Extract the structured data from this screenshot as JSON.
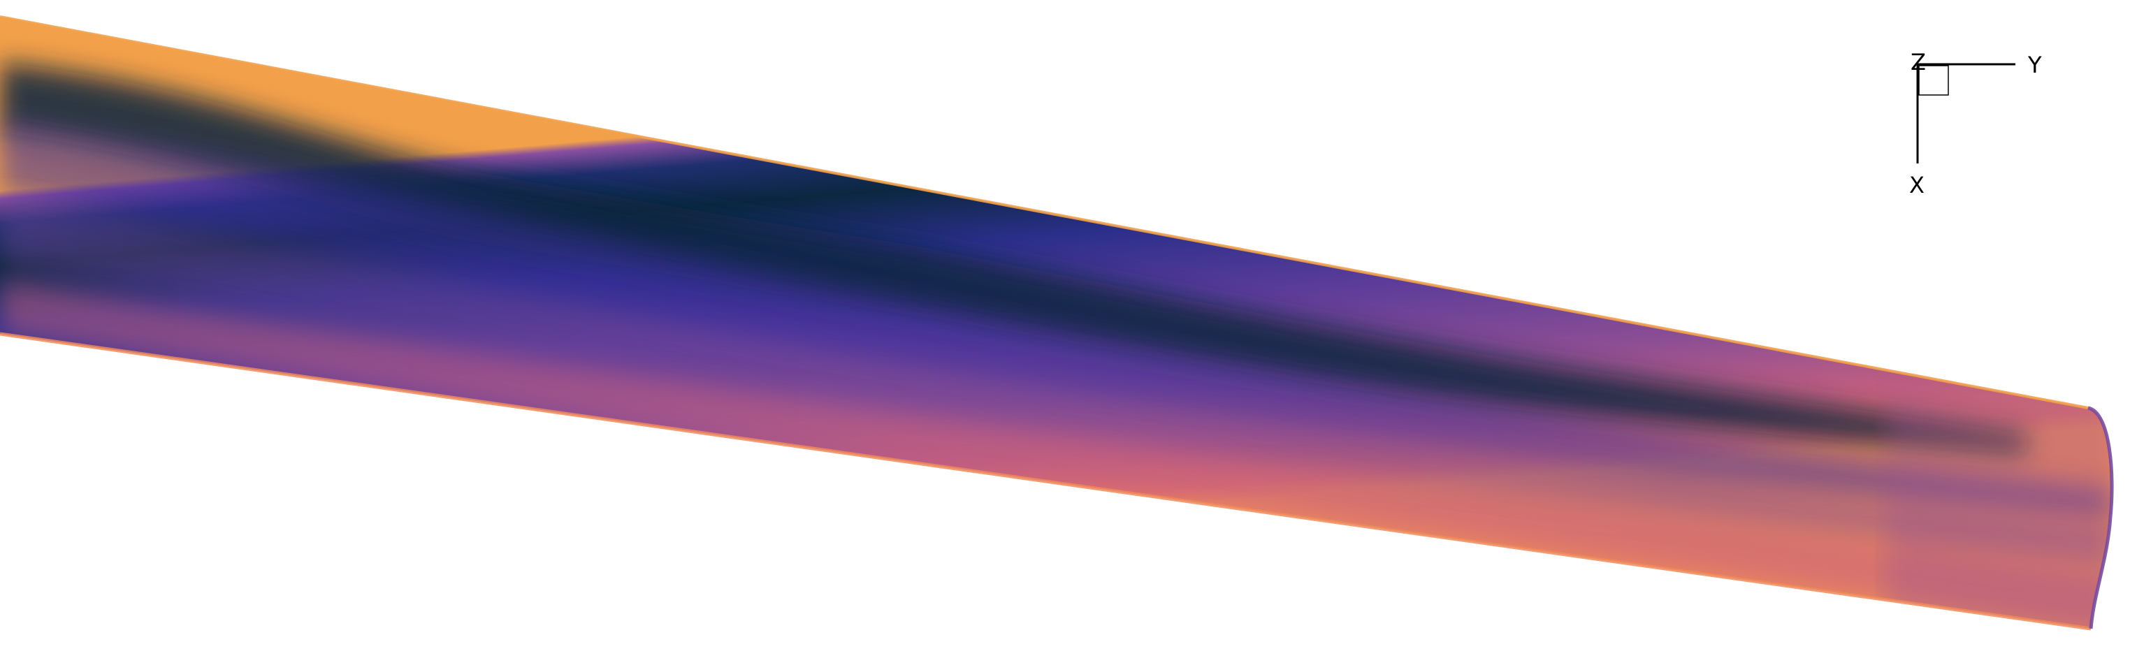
{
  "scene": {
    "background": "#ffffff",
    "colormap": {
      "dark": "#0b2740",
      "deep_blue": "#17305e",
      "indigo": "#3a2f9c",
      "purple": "#6a3f98",
      "mauve": "#b05c86",
      "salmon": "#e2726a",
      "orange": "#f2a04a"
    }
  },
  "axes_triad": {
    "label_z": "Z",
    "label_y": "Y",
    "label_x": "X",
    "color": "#000000"
  }
}
